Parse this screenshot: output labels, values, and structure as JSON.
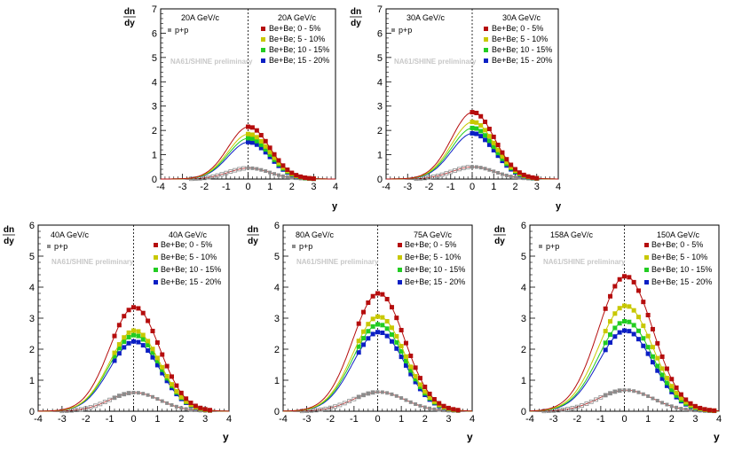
{
  "figure": {
    "y_axis_title_num": "dn",
    "y_axis_title_den": "dy",
    "x_axis_title": "y",
    "watermark": "NA61/SHINE preliminary",
    "pp_legend": "p+p",
    "legend_labels": [
      "Be+Be; 0 - 5%",
      "Be+Be; 5 - 10%",
      "Be+Be; 10 - 15%",
      "Be+Be; 15 - 20%"
    ],
    "colors": {
      "c0_5": "#b50d0d",
      "c5_10": "#c8c800",
      "c10_15": "#22cc22",
      "c15_20": "#0b1fc4",
      "pp": "#8c8c8c"
    }
  },
  "chart_data": [
    {
      "type": "scatter",
      "pp_energy_label": "20A GeV/c",
      "bebe_energy_label": "20A GeV/c",
      "xlabel": "y",
      "ylabel": "dn/dy",
      "xlim": [
        -4,
        4
      ],
      "ylim": [
        0,
        7
      ],
      "xticks": [
        -4,
        -3,
        -2,
        -1,
        0,
        1,
        2,
        3,
        4
      ],
      "yticks": [
        0,
        1,
        2,
        3,
        4,
        5,
        6,
        7
      ],
      "peak_heights": {
        "Be+Be; 0 - 5%": 2.15,
        "Be+Be; 5 - 10%": 1.85,
        "Be+Be; 10 - 15%": 1.68,
        "Be+Be; 15 - 20%": 1.52,
        "p+p": 0.45
      },
      "sigma": 0.95,
      "measured_y_range": [
        0.0,
        3.0
      ]
    },
    {
      "type": "scatter",
      "pp_energy_label": "30A GeV/c",
      "bebe_energy_label": "30A GeV/c",
      "xlabel": "y",
      "ylabel": "dn/dy",
      "xlim": [
        -4,
        4
      ],
      "ylim": [
        0,
        7
      ],
      "xticks": [
        -4,
        -3,
        -2,
        -1,
        0,
        1,
        2,
        3,
        4
      ],
      "yticks": [
        0,
        1,
        2,
        3,
        4,
        5,
        6,
        7
      ],
      "peak_heights": {
        "Be+Be; 0 - 5%": 2.75,
        "Be+Be; 5 - 10%": 2.35,
        "Be+Be; 10 - 15%": 2.1,
        "Be+Be; 15 - 20%": 1.88,
        "p+p": 0.5
      },
      "sigma": 1.0,
      "measured_y_range": [
        0.0,
        3.0
      ]
    },
    {
      "type": "scatter",
      "pp_energy_label": "40A GeV/c",
      "bebe_energy_label": "40A GeV/c",
      "xlabel": "y",
      "ylabel": "dn/dy",
      "xlim": [
        -4,
        4
      ],
      "ylim": [
        0,
        6
      ],
      "xticks": [
        -4,
        -3,
        -2,
        -1,
        0,
        1,
        2,
        3,
        4
      ],
      "yticks": [
        0,
        1,
        2,
        3,
        4,
        5,
        6
      ],
      "peak_heights": {
        "Be+Be; 0 - 5%": 3.35,
        "Be+Be; 5 - 10%": 2.6,
        "Be+Be; 10 - 15%": 2.45,
        "Be+Be; 15 - 20%": 2.25,
        "p+p": 0.6
      },
      "sigma": 1.05,
      "measured_y_range": [
        -0.8,
        3.3
      ]
    },
    {
      "type": "scatter",
      "pp_energy_label": "80A GeV/c",
      "bebe_energy_label": "75A GeV/c",
      "xlabel": "y",
      "ylabel": "dn/dy",
      "xlim": [
        -4,
        4
      ],
      "ylim": [
        0,
        6
      ],
      "xticks": [
        -4,
        -3,
        -2,
        -1,
        0,
        1,
        2,
        3,
        4
      ],
      "yticks": [
        0,
        1,
        2,
        3,
        4,
        5,
        6
      ],
      "peak_heights": {
        "Be+Be; 0 - 5%": 3.8,
        "Be+Be; 5 - 10%": 3.05,
        "Be+Be; 10 - 15%": 2.8,
        "Be+Be; 15 - 20%": 2.55,
        "p+p": 0.62
      },
      "sigma": 1.1,
      "measured_y_range": [
        -0.8,
        3.5
      ]
    },
    {
      "type": "scatter",
      "pp_energy_label": "158A GeV/c",
      "bebe_energy_label": "150A GeV/c",
      "xlabel": "y",
      "ylabel": "dn/dy",
      "xlim": [
        -4,
        4
      ],
      "ylim": [
        0,
        6
      ],
      "xticks": [
        -4,
        -3,
        -2,
        -1,
        0,
        1,
        2,
        3,
        4
      ],
      "yticks": [
        0,
        1,
        2,
        3,
        4,
        5,
        6
      ],
      "peak_heights": {
        "Be+Be; 0 - 5%": 4.35,
        "Be+Be; 5 - 10%": 3.4,
        "Be+Be; 10 - 15%": 2.9,
        "Be+Be; 15 - 20%": 2.6,
        "p+p": 0.68
      },
      "sigma": 1.15,
      "measured_y_range": [
        -0.8,
        3.8
      ]
    }
  ]
}
